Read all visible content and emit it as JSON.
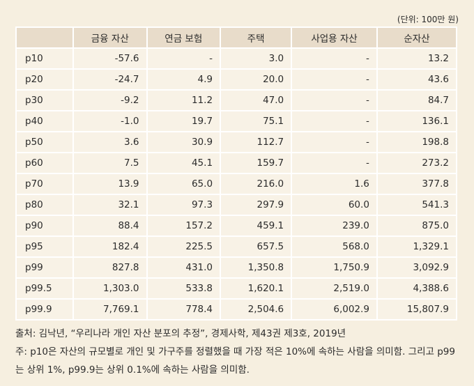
{
  "table": {
    "unit": "(단위: 100만 원)",
    "header": [
      "",
      "금융 자산",
      "연금 보험",
      "주택",
      "사업용 자산",
      "순자산"
    ],
    "rows": [
      [
        "p10",
        "-57.6",
        "-",
        "3.0",
        "-",
        "13.2"
      ],
      [
        "p20",
        "-24.7",
        "4.9",
        "20.0",
        "-",
        "43.6"
      ],
      [
        "p30",
        "-9.2",
        "11.2",
        "47.0",
        "-",
        "84.7"
      ],
      [
        "p40",
        "-1.0",
        "19.7",
        "75.1",
        "-",
        "136.1"
      ],
      [
        "p50",
        "3.6",
        "30.9",
        "112.7",
        "-",
        "198.8"
      ],
      [
        "p60",
        "7.5",
        "45.1",
        "159.7",
        "-",
        "273.2"
      ],
      [
        "p70",
        "13.9",
        "65.0",
        "216.0",
        "1.6",
        "377.8"
      ],
      [
        "p80",
        "32.1",
        "97.3",
        "297.9",
        "60.0",
        "541.3"
      ],
      [
        "p90",
        "88.4",
        "157.2",
        "459.1",
        "239.0",
        "875.0"
      ],
      [
        "p95",
        "182.4",
        "225.5",
        "657.5",
        "568.0",
        "1,329.1"
      ],
      [
        "p99",
        "827.8",
        "431.0",
        "1,350.8",
        "1,750.9",
        "3,092.9"
      ],
      [
        "p99.5",
        "1,303.0",
        "533.8",
        "1,620.1",
        "2,519.0",
        "4,388.6"
      ],
      [
        "p99.9",
        "7,769.1",
        "778.4",
        "2,504.6",
        "6,002.9",
        "15,807.9"
      ]
    ]
  },
  "notes": {
    "source": "출처: 김낙년, “우리나라 개인 자산 분포의 추정”, 경제사학, 제43권 제3호, 2019년",
    "note": "주: p10은 자산의 규모별로 개인 및 가구주를 정렬했을 때 가장 적은 10%에 속하는 사람을 의미함. 그리고 p99는 상위 1%, p99.9는 상위 0.1%에 속하는 사람을 의미함."
  }
}
